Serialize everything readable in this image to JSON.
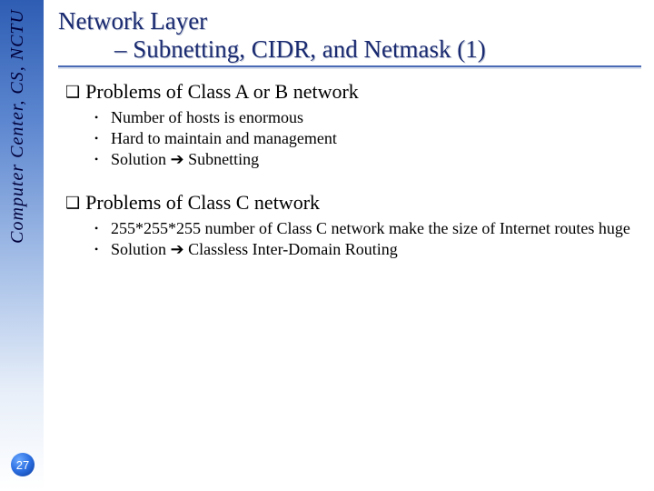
{
  "sidebar": {
    "label": "Computer Center, CS, NCTU",
    "text_color": "#00003a",
    "gradient_top": "#2e5db3",
    "gradient_bottom": "#ffffff"
  },
  "page_number": "27",
  "title": {
    "line1": "Network Layer",
    "line2_prefix": "– ",
    "line2": "Subnetting, CIDR, and Netmask (1)",
    "color": "#1a2a70",
    "underline_color": "#4a6ab5",
    "fontsize": 27
  },
  "sections": [
    {
      "heading": "Problems of Class A or B network",
      "bullets": [
        "Number of hosts is enormous",
        "Hard to maintain and management",
        "Solution ➔ Subnetting"
      ]
    },
    {
      "heading": "Problems of Class C network",
      "bullets": [
        "255*255*255 number of Class C network make the size of Internet routes huge",
        "Solution ➔ Classless Inter-Domain Routing"
      ]
    }
  ],
  "markers": {
    "section_marker": "❑",
    "bullet_marker": "•",
    "arrow": "➔"
  },
  "typography": {
    "heading_fontsize": 22,
    "bullet_fontsize": 18,
    "font_family": "Times New Roman"
  },
  "colors": {
    "background": "#ffffff",
    "text": "#000000"
  }
}
